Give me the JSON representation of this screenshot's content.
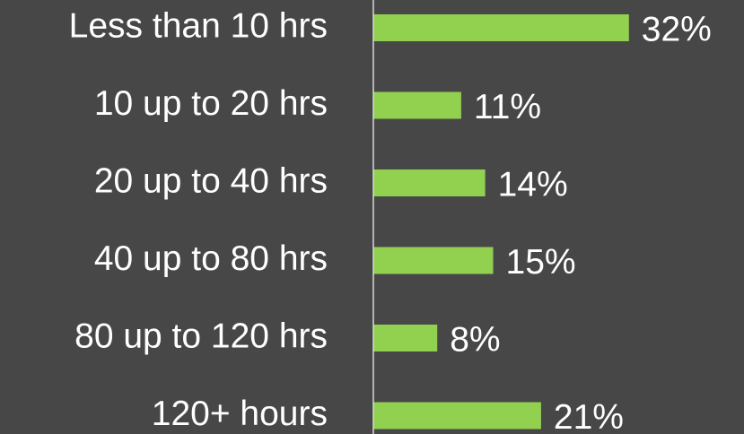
{
  "chart_data": {
    "type": "barh",
    "categories": [
      "Less than 10 hrs",
      "10 up to 20 hrs",
      "20 up to 40 hrs",
      "40 up to 80 hrs",
      "80 up to 120 hrs",
      "120+ hours"
    ],
    "values": [
      32,
      11,
      14,
      15,
      8,
      21
    ],
    "value_labels": [
      "32%",
      "11%",
      "14%",
      "15%",
      "8%",
      "21%"
    ],
    "color": "#92d050"
  }
}
